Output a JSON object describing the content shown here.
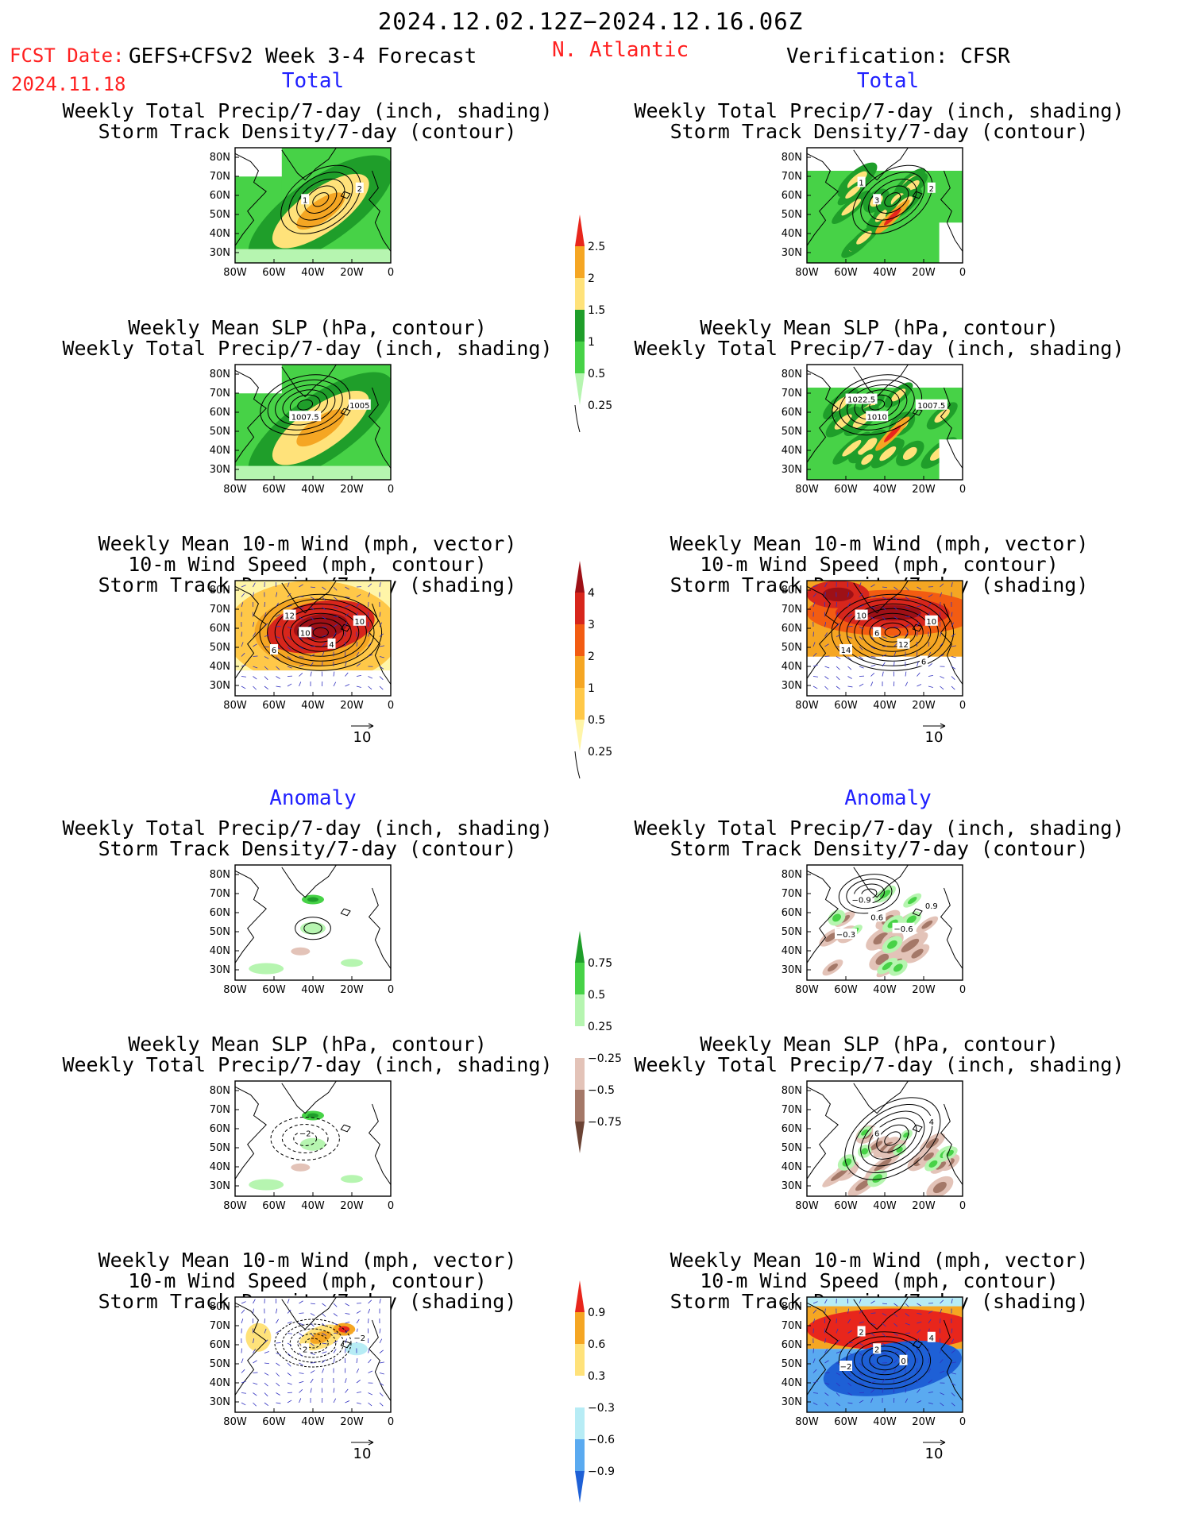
{
  "header": {
    "date_range": "2024.12.02.12Z−2024.12.16.06Z",
    "fcst_label": "FCST Date:",
    "fcst_date": "2024.11.18",
    "model": "GEFS+CFSv2 Week 3-4 Forecast",
    "region": "N. Atlantic",
    "verification": "Verification: CFSR"
  },
  "sections": {
    "total_left": "Total",
    "total_right": "Total",
    "anomaly_left": "Anomaly",
    "anomaly_right": "Anomaly"
  },
  "panel_titles": {
    "precip_track": [
      "Weekly Total Precip/7-day (inch, shading)",
      "Storm Track Density/7-day (contour)"
    ],
    "slp_precip": [
      "Weekly Mean SLP (hPa, contour)",
      "Weekly Total Precip/7-day (inch, shading)"
    ],
    "wind_track": [
      "Weekly Mean 10-m Wind (mph, vector)",
      "10-m Wind Speed (mph, contour)",
      "Storm Track Density/7-day (shading)"
    ]
  },
  "axes": {
    "lat_ticks": [
      "80N",
      "70N",
      "60N",
      "50N",
      "40N",
      "30N"
    ],
    "lon_ticks": [
      "80W",
      "60W",
      "40W",
      "20W",
      "0"
    ]
  },
  "vector_ref": "10",
  "colorbars": {
    "precip_total": {
      "labels": [
        "2.5",
        "2",
        "1.5",
        "1",
        "0.5",
        "0.25"
      ],
      "colors": [
        "#e8261c",
        "#f5a623",
        "#ffe27a",
        "#1f9e2a",
        "#47d247",
        "#b6f5b0"
      ]
    },
    "track_total": {
      "labels": [
        "4",
        "3",
        "2",
        "1",
        "0.5",
        "0.25"
      ],
      "colors": [
        "#9e1016",
        "#d7261c",
        "#f25c12",
        "#f5a623",
        "#ffc848",
        "#fff5a8"
      ]
    },
    "precip_anom": {
      "labels": [
        "0.75",
        "0.5",
        "0.25",
        "−0.25",
        "−0.5",
        "−0.75"
      ],
      "colors": [
        "#1f9e2a",
        "#47d247",
        "#b6f5b0",
        "#ffffff",
        "#e3c3b8",
        "#a47868",
        "#6b4334"
      ]
    },
    "track_anom": {
      "labels": [
        "0.9",
        "0.6",
        "0.3",
        "−0.3",
        "−0.6",
        "−0.9"
      ],
      "colors": [
        "#e8261c",
        "#f5a623",
        "#ffe27a",
        "#ffffff",
        "#b7ecf5",
        "#5aaaf0",
        "#1e60d6"
      ]
    }
  },
  "contour_labels": {
    "fc_precip_track": [
      "1",
      "2"
    ],
    "fc_slp": [
      "1007.5",
      "1005"
    ],
    "fc_wind": [
      "10",
      "10",
      "12",
      "4",
      "6"
    ],
    "vf_precip_track": [
      "3",
      "2",
      "1"
    ],
    "vf_slp": [
      "1010",
      "1007.5",
      "1022.5"
    ],
    "vf_wind": [
      "6",
      "10",
      "10",
      "12",
      "14",
      "6"
    ],
    "fa_precip_track": [],
    "fa_slp": [
      "−2"
    ],
    "fa_wind": [
      "2",
      "−2"
    ],
    "va_precip_track": [
      "0.6",
      "0.9",
      "−0.9",
      "−0.6",
      "−0.3"
    ],
    "va_slp": [
      "6",
      "4"
    ],
    "va_wind": [
      "2",
      "4",
      "2",
      "0",
      "−2"
    ]
  }
}
